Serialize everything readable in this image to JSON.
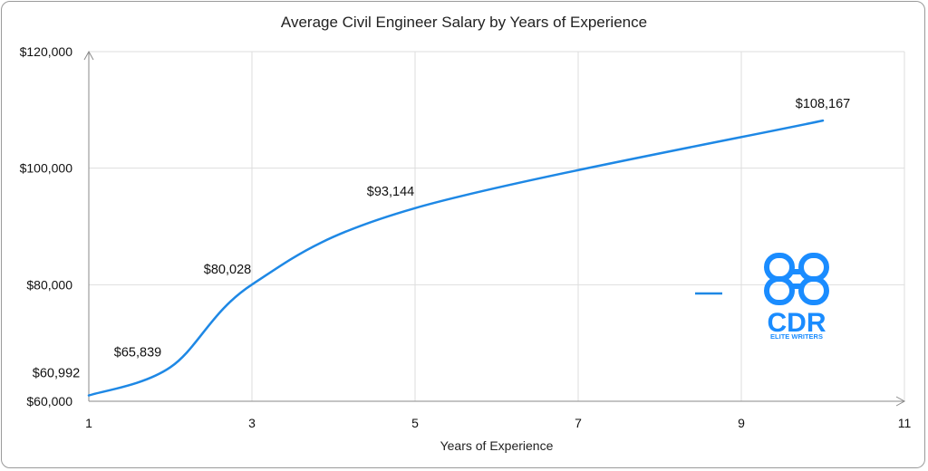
{
  "chart_data": {
    "type": "line",
    "title": "Average Civil Engineer Salary by Years of Experience",
    "xlabel": "Years of Experience",
    "ylabel": "",
    "xlim": [
      1,
      11
    ],
    "ylim": [
      60000,
      120000
    ],
    "x_ticks": [
      "1",
      "3",
      "5",
      "7",
      "9",
      "11"
    ],
    "y_ticks": [
      "$60,000",
      "$80,000",
      "$100,000",
      "$120,000"
    ],
    "grid": true,
    "series": [
      {
        "color": "#1e88e5",
        "x": [
          1,
          2,
          3,
          5,
          10
        ],
        "y": [
          60992,
          65839,
          80028,
          93144,
          108167
        ],
        "labels": [
          "$60,992",
          "$65,839",
          "$80,028",
          "$93,144",
          "$108,167"
        ]
      }
    ],
    "legend": {
      "position": "right"
    }
  },
  "logo": {
    "text": "CDR",
    "subtext": "ELITE WRITERS",
    "color": "#1a8cff"
  }
}
